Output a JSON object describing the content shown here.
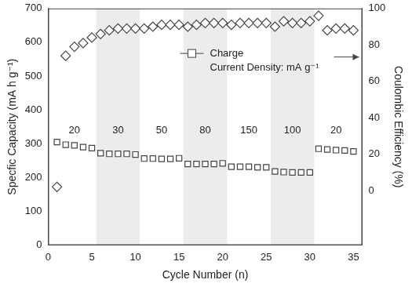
{
  "chart_data": {
    "type": "scatter",
    "xlabel": "Cycle Number (n)",
    "ylabel": "Specfic Capacity (mA h g⁻¹)",
    "y2label": "Coulombic Efficiency (%)",
    "x": [
      1,
      2,
      3,
      4,
      5,
      6,
      7,
      8,
      9,
      10,
      11,
      12,
      13,
      14,
      15,
      16,
      17,
      18,
      19,
      20,
      21,
      22,
      23,
      24,
      25,
      26,
      27,
      28,
      29,
      30,
      31,
      32,
      33,
      34,
      35
    ],
    "series": [
      {
        "name": "Charge",
        "color": "#444444",
        "marker": "square",
        "values": [
          305,
          297,
          295,
          290,
          287,
          272,
          270,
          270,
          270,
          268,
          256,
          256,
          255,
          255,
          257,
          240,
          240,
          240,
          240,
          242,
          232,
          232,
          232,
          230,
          230,
          218,
          216,
          215,
          215,
          215,
          285,
          283,
          281,
          280,
          277
        ]
      },
      {
        "color": "#444444",
        "marker": "diamond",
        "axis": "y2",
        "values": [
          2,
          74,
          79,
          81,
          84,
          86,
          88,
          89,
          89,
          89,
          89,
          90,
          91,
          91,
          91,
          90,
          91,
          92,
          92,
          92,
          91,
          92,
          92,
          92,
          92,
          90,
          93,
          92,
          92,
          93,
          96,
          88,
          89,
          89,
          88
        ]
      }
    ],
    "xlim": [
      0,
      36
    ],
    "xticks": [
      0,
      5,
      10,
      15,
      20,
      25,
      30,
      35
    ],
    "ylim": [
      0,
      700
    ],
    "yticks": [
      0,
      100,
      200,
      300,
      400,
      500,
      600,
      700
    ],
    "y2lim": [
      -30,
      100
    ],
    "y2ticks": [
      0,
      20,
      40,
      60,
      80,
      100
    ],
    "grid": false,
    "legend": "top",
    "annotations": [
      {
        "text": "Current Density: mA g⁻¹"
      }
    ],
    "segments": [
      {
        "label": "20",
        "start": 1,
        "end": 5
      },
      {
        "label": "30",
        "start": 6,
        "end": 10
      },
      {
        "label": "50",
        "start": 11,
        "end": 15
      },
      {
        "label": "80",
        "start": 16,
        "end": 20
      },
      {
        "label": "150",
        "start": 21,
        "end": 25
      },
      {
        "label": "100",
        "start": 26,
        "end": 30
      },
      {
        "label": "20",
        "start": 31,
        "end": 35
      }
    ]
  }
}
